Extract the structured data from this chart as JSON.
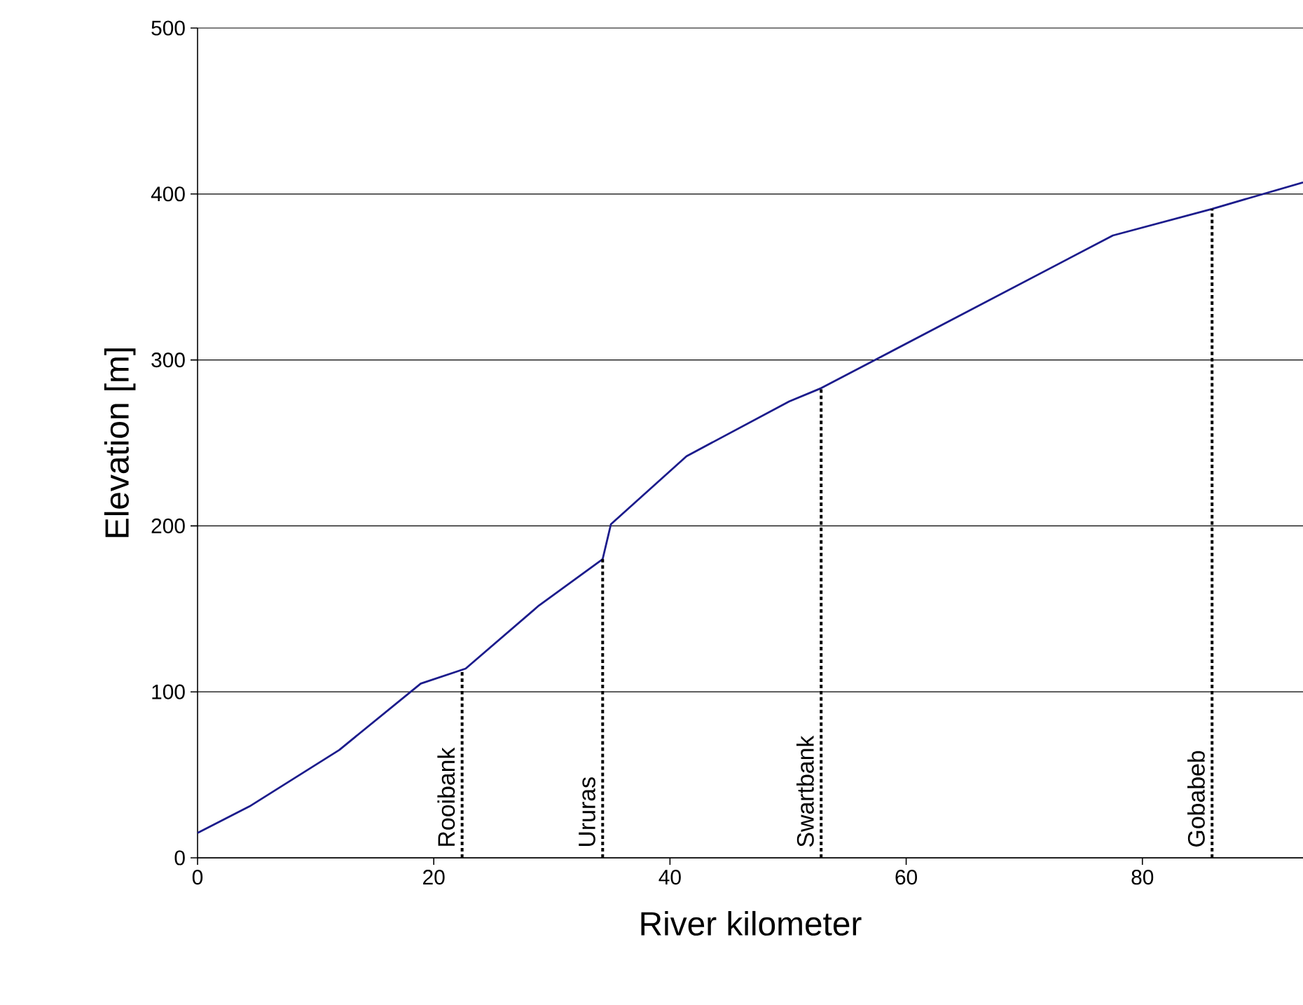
{
  "chart_data": {
    "type": "line",
    "xlabel": "River kilometer",
    "ylabel": "Elevation [m]",
    "x": [
      0,
      4.4,
      12,
      18.9,
      22.7,
      28.9,
      34.3,
      35,
      41.4,
      50.1,
      52.8,
      77.5,
      85.9,
      93.6
    ],
    "series": [
      {
        "color": "#1c1c8c",
        "values": [
          15,
          31,
          65,
          105,
          114,
          152,
          180,
          201,
          242,
          275,
          283,
          375,
          391,
          407
        ]
      }
    ],
    "xlim": [
      0,
      93.6
    ],
    "ylim": [
      0,
      500
    ],
    "xticks": [
      0,
      20,
      40,
      60,
      80
    ],
    "yticks": [
      0,
      100,
      200,
      300,
      400,
      500
    ],
    "grid": "y",
    "marker": "none",
    "line_style": "solid",
    "ref_lines": [
      {
        "axis": "x",
        "value": 22.4,
        "label": "Rooibank",
        "line_style": "dotted",
        "color": "#000000"
      },
      {
        "axis": "x",
        "value": 34.3,
        "label": "Ururas",
        "line_style": "dotted",
        "color": "#000000"
      },
      {
        "axis": "x",
        "value": 52.8,
        "label": "Swartbank",
        "line_style": "dotted",
        "color": "#000000"
      },
      {
        "axis": "x",
        "value": 85.9,
        "label": "Gobabeb",
        "line_style": "dotted",
        "color": "#000000"
      }
    ]
  }
}
